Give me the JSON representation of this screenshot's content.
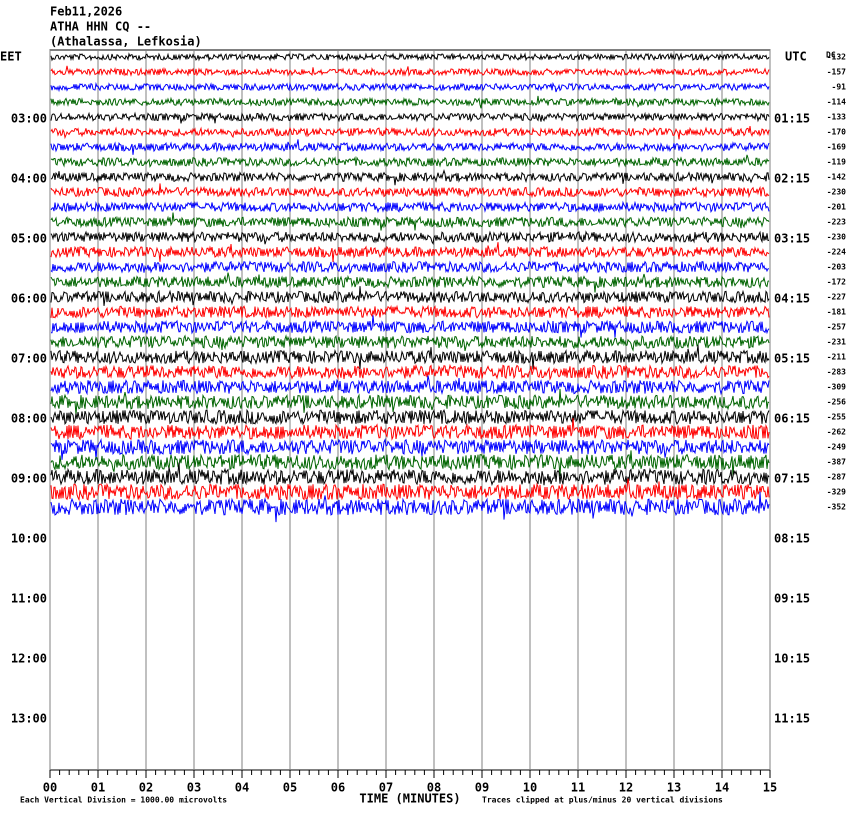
{
  "header": {
    "date": "Feb11,2026",
    "station": "ATHA HHN CQ --",
    "location": "(Athalassa, Lefkosia)"
  },
  "left_zone": "EET",
  "right_zone": "UTC",
  "dc_label": "DC",
  "left_times": [
    "03:00",
    "04:00",
    "05:00",
    "06:00",
    "07:00",
    "08:00",
    "09:00",
    "10:00",
    "11:00",
    "12:00",
    "13:00"
  ],
  "right_times": [
    "01:15",
    "02:15",
    "03:15",
    "04:15",
    "05:15",
    "06:15",
    "07:15",
    "08:15",
    "09:15",
    "10:15",
    "11:15"
  ],
  "dc_offsets": [
    -132,
    -157,
    -91,
    -114,
    -133,
    -170,
    -169,
    -119,
    -142,
    -230,
    -201,
    -223,
    -230,
    -224,
    -203,
    -172,
    -227,
    -181,
    -257,
    -231,
    -211,
    -283,
    -309,
    -256,
    -255,
    -262,
    -249,
    -387,
    -287,
    -329,
    -352
  ],
  "trace_colors": [
    "#000000",
    "#ff0000",
    "#0000ff",
    "#006400"
  ],
  "x_ticks": [
    "00",
    "01",
    "02",
    "03",
    "04",
    "05",
    "06",
    "07",
    "08",
    "09",
    "10",
    "11",
    "12",
    "13",
    "14",
    "15"
  ],
  "x_label": "TIME (MINUTES)",
  "footer_left": "Each Vertical Division = 1000.00 microvolts",
  "footer_right": "Traces clipped at plus/minus 20 vertical divisions"
}
